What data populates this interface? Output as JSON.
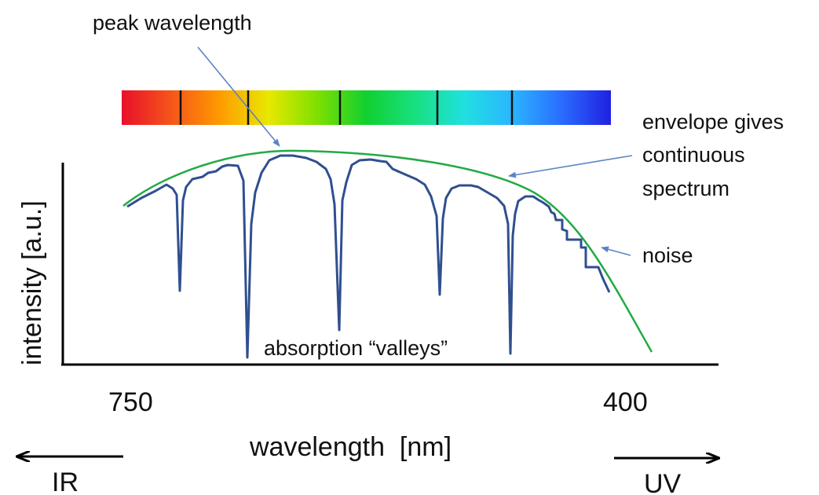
{
  "labels": {
    "peak": "peak wavelength",
    "envelope": [
      "envelope gives",
      "continuous",
      "spectrum"
    ],
    "noise": "noise",
    "valleys": "absorption “valleys”",
    "y_axis": "intensity [a.u.]",
    "x_axis": "wavelength  [nm]",
    "x_tick_left": "750",
    "x_tick_right": "400",
    "ir": "IR",
    "uv": "UV"
  },
  "colors": {
    "spectrum": "#2f4f8f",
    "envelope": "#22aa44",
    "annotation_arrow": "#5b84c4",
    "axis": "#000000",
    "absorption_line": "#111111",
    "rainbow": [
      "#e8102a",
      "#f5541a",
      "#ff9a00",
      "#e8e800",
      "#7de000",
      "#10d030",
      "#18e080",
      "#20e0e0",
      "#2ab4ff",
      "#2a6cff",
      "#2020e0"
    ]
  },
  "chart_data": {
    "type": "line",
    "xlabel": "wavelength  [nm]",
    "ylabel": "intensity [a.u.]",
    "x_ticks": [
      "750",
      "400"
    ],
    "grid": false,
    "series": [
      {
        "kind": "spectrum"
      },
      {
        "kind": "envelope"
      }
    ]
  }
}
